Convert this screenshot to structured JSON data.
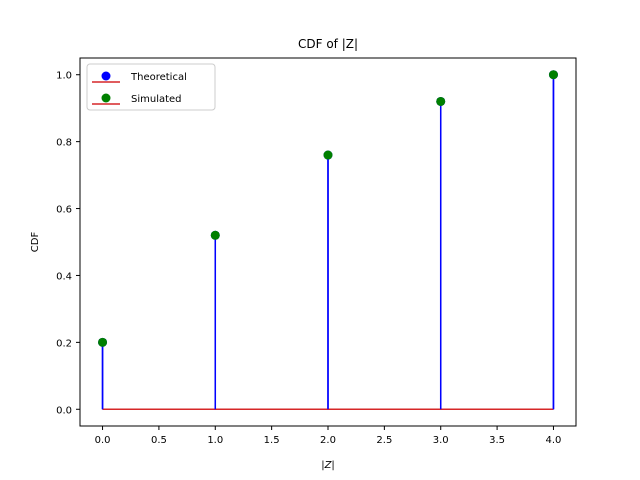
{
  "chart_data": {
    "type": "stem",
    "title": "CDF of |Z|",
    "xlabel": "|Z|",
    "ylabel": "CDF",
    "xlim": [
      -0.2,
      4.2
    ],
    "ylim": [
      -0.05,
      1.05
    ],
    "xticks": [
      "0.0",
      "0.5",
      "1.0",
      "1.5",
      "2.0",
      "2.5",
      "3.0",
      "3.5",
      "4.0"
    ],
    "xtick_values": [
      0,
      0.5,
      1,
      1.5,
      2,
      2.5,
      3,
      3.5,
      4
    ],
    "yticks": [
      "0.0",
      "0.2",
      "0.4",
      "0.6",
      "0.8",
      "1.0"
    ],
    "ytick_values": [
      0,
      0.2,
      0.4,
      0.6,
      0.8,
      1.0
    ],
    "legend_position": "top-left",
    "series": [
      {
        "name": "Theoretical",
        "x": [
          0,
          1,
          2,
          3,
          4
        ],
        "values": [
          0.2,
          0.52,
          0.76,
          0.92,
          1.0
        ],
        "marker_color": "#0000ff",
        "stem_color": "#0000ff",
        "baseline_color": "#d62728"
      },
      {
        "name": "Simulated",
        "x": [
          0,
          1,
          2,
          3,
          4
        ],
        "values": [
          0.2,
          0.52,
          0.76,
          0.92,
          1.0
        ],
        "marker_color": "#008000",
        "stem_color": "#0000ff",
        "baseline_color": "#d62728"
      }
    ]
  }
}
